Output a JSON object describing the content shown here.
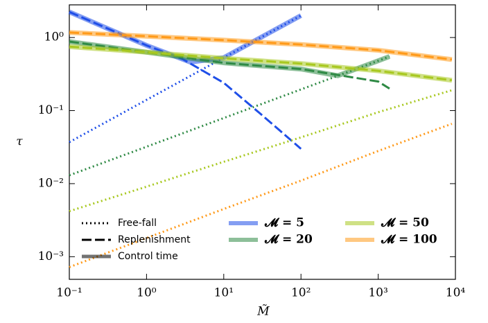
{
  "chart_data": {
    "type": "line",
    "log_x": true,
    "log_y": true,
    "x_label": "M̃",
    "y_label": "τ",
    "xlim": [
      0.1,
      10000
    ],
    "ylim": [
      0.00049,
      2.8
    ],
    "xticks": [
      {
        "value": 0.1,
        "label": "10⁻¹"
      },
      {
        "value": 1,
        "label": "10⁰"
      },
      {
        "value": 10,
        "label": "10¹"
      },
      {
        "value": 100,
        "label": "10²"
      },
      {
        "value": 1000,
        "label": "10³"
      },
      {
        "value": 10000,
        "label": "10⁴"
      }
    ],
    "yticks": [
      {
        "value": 0.001,
        "label": "10⁻³"
      },
      {
        "value": 0.01,
        "label": "10⁻²"
      },
      {
        "value": 0.1,
        "label": "10⁻¹"
      },
      {
        "value": 1,
        "label": "10⁰"
      }
    ],
    "style_legend": [
      {
        "label": "Free-fall",
        "style": "dotted"
      },
      {
        "label": "Replenishment",
        "style": "dashed"
      },
      {
        "label": "Control time",
        "style": "solid"
      }
    ],
    "groups": [
      {
        "name": "𝓜 = 5",
        "color": "#1f4fe8",
        "free_fall": {
          "x": [
            0.1,
            1,
            10,
            100
          ],
          "values": [
            0.037,
            0.14,
            0.53,
            2.0
          ]
        },
        "replenishment": {
          "x": [
            0.1,
            1,
            3,
            10,
            30,
            100
          ],
          "values": [
            2.24,
            0.78,
            0.5,
            0.24,
            0.09,
            0.03
          ]
        },
        "control_time": {
          "x": [
            0.1,
            1,
            3.7,
            10,
            100
          ],
          "values": [
            2.24,
            0.78,
            0.46,
            0.53,
            2.0
          ]
        }
      },
      {
        "name": "𝓜 = 20",
        "color": "#2f8a45",
        "free_fall": {
          "x": [
            0.1,
            1,
            10,
            100,
            1000,
            1400
          ],
          "values": [
            0.013,
            0.032,
            0.079,
            0.195,
            0.48,
            0.55
          ]
        },
        "replenishment": {
          "x": [
            0.1,
            1,
            10,
            100,
            1000,
            1400
          ],
          "values": [
            0.88,
            0.63,
            0.45,
            0.37,
            0.25,
            0.2
          ]
        },
        "control_time": {
          "x": [
            0.1,
            1,
            10,
            100,
            300,
            1000,
            1400
          ],
          "values": [
            0.88,
            0.63,
            0.45,
            0.37,
            0.3,
            0.48,
            0.55
          ]
        }
      },
      {
        "name": "𝓜 = 50",
        "color": "#a8c820",
        "free_fall": {
          "x": [
            0.1,
            1,
            10,
            100,
            1000,
            9000
          ],
          "values": [
            0.0042,
            0.0091,
            0.0199,
            0.043,
            0.095,
            0.19
          ]
        },
        "replenishment": {
          "x": [
            0.1,
            1,
            10,
            100,
            1000,
            9000
          ],
          "values": [
            0.75,
            0.63,
            0.52,
            0.44,
            0.35,
            0.26
          ]
        },
        "control_time": {
          "x": [
            0.1,
            1,
            10,
            100,
            1000,
            9000
          ],
          "values": [
            0.75,
            0.63,
            0.52,
            0.44,
            0.35,
            0.26
          ]
        }
      },
      {
        "name": "𝓜 = 100",
        "color": "#ff9a1a",
        "free_fall": {
          "x": [
            0.1,
            1,
            10,
            100,
            1000,
            9000
          ],
          "values": [
            0.00072,
            0.0018,
            0.0045,
            0.011,
            0.028,
            0.066
          ]
        },
        "replenishment": {
          "x": [
            0.1,
            1,
            10,
            100,
            1000,
            9000
          ],
          "values": [
            1.17,
            1.04,
            0.92,
            0.8,
            0.67,
            0.5
          ]
        },
        "control_time": {
          "x": [
            0.1,
            1,
            10,
            100,
            1000,
            9000
          ],
          "values": [
            1.17,
            1.04,
            0.92,
            0.8,
            0.67,
            0.5
          ]
        }
      }
    ]
  }
}
